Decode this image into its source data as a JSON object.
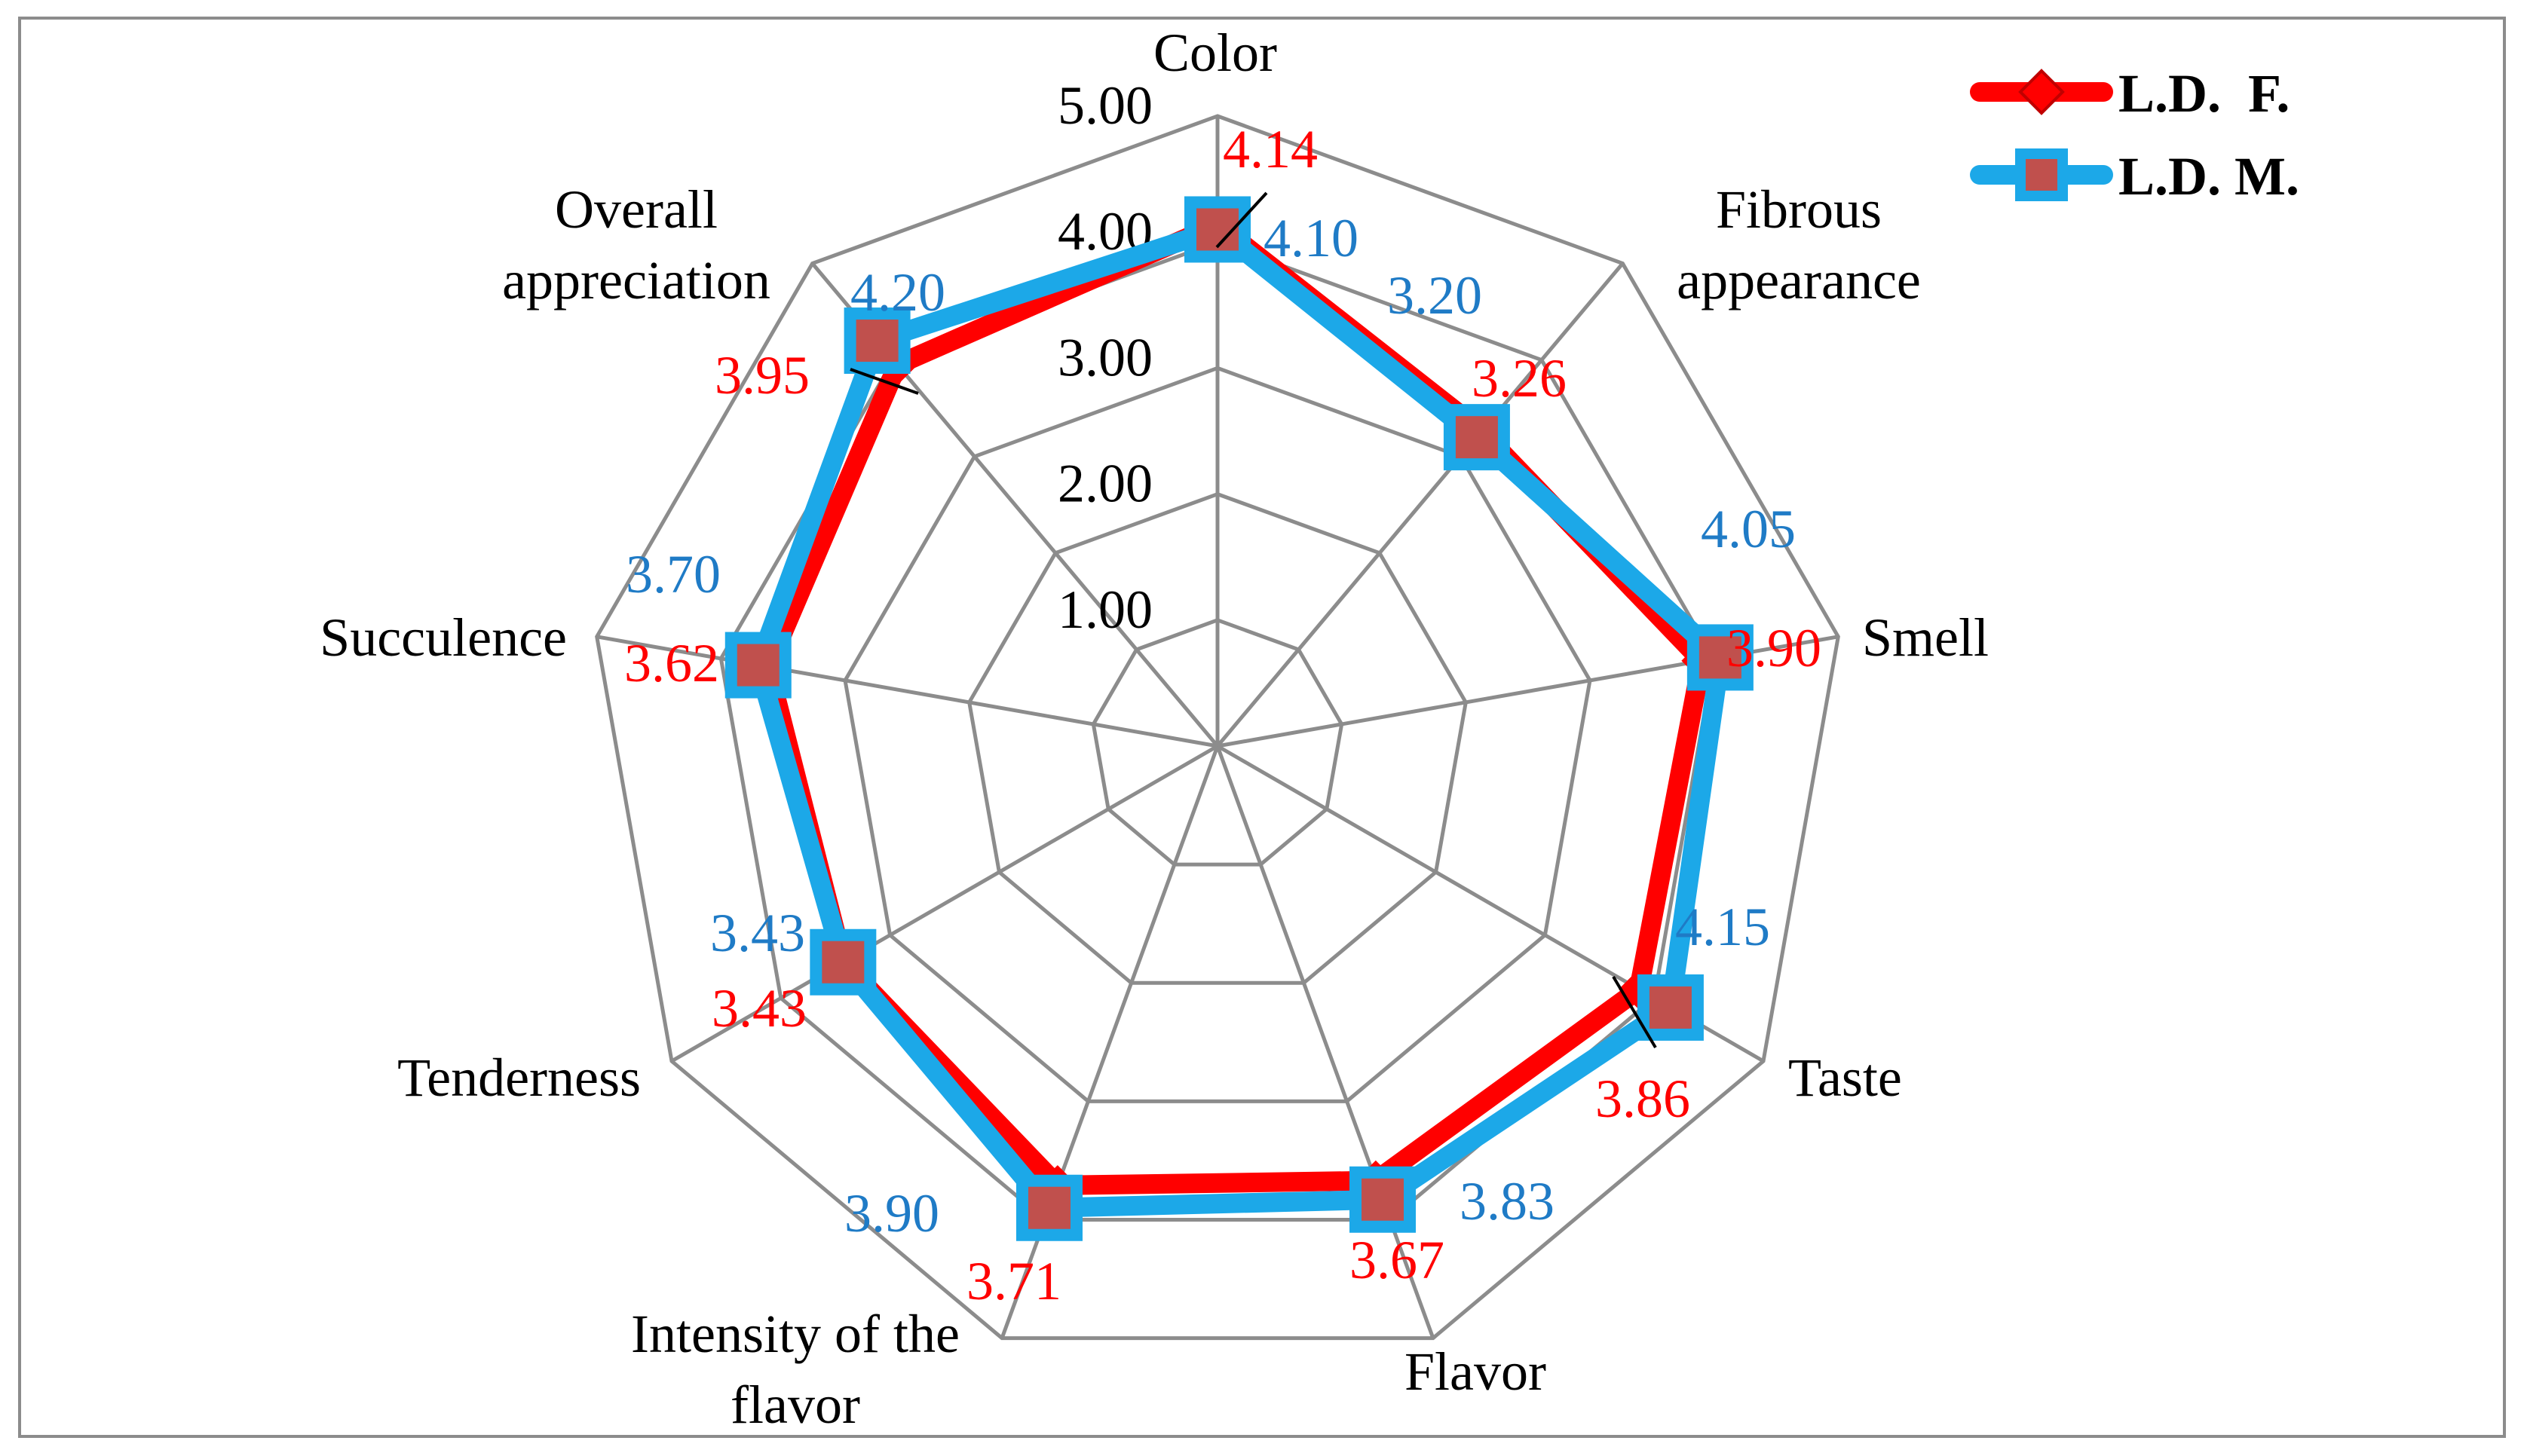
{
  "chart_data": {
    "type": "radar",
    "categories": [
      "Color",
      "Fibrous appearance",
      "Smell",
      "Taste",
      "Flavor",
      "Intensity of the flavor",
      "Tenderness",
      "Succulence",
      "Overall appreciation"
    ],
    "category_lines": [
      [
        "Color"
      ],
      [
        "Fibrous",
        "appearance"
      ],
      [
        "Smell"
      ],
      [
        "Taste"
      ],
      [
        "Flavor"
      ],
      [
        "Intensity of the",
        "flavor"
      ],
      [
        "Tenderness"
      ],
      [
        "Succulence"
      ],
      [
        "Overall",
        "appreciation"
      ]
    ],
    "rlim": [
      0,
      5
    ],
    "ticks": [
      1,
      2,
      3,
      4,
      5
    ],
    "tick_labels": [
      "1.00",
      "2.00",
      "3.00",
      "4.00",
      "5.00"
    ],
    "grid": true,
    "legend_position": "top-right",
    "series": [
      {
        "name": "L.D.  F.",
        "color": "#ff0000",
        "marker": "diamond",
        "values": [
          4.14,
          3.26,
          3.9,
          3.86,
          3.67,
          3.71,
          3.43,
          3.62,
          3.95
        ],
        "labels": [
          "4.14",
          "3.26",
          "3.90",
          "3.86",
          "3.67",
          "3.71",
          "3.43",
          "3.62",
          "3.95"
        ]
      },
      {
        "name": "L.D. M.",
        "color": "#1ca8e8",
        "marker": "square",
        "marker_fill": "#c0504d",
        "values": [
          4.1,
          3.2,
          4.05,
          4.15,
          3.83,
          3.9,
          3.43,
          3.7,
          4.2
        ],
        "labels": [
          "4.10",
          "3.20",
          "4.05",
          "4.15",
          "3.83",
          "3.90",
          "3.43",
          "3.70",
          "4.20"
        ]
      }
    ]
  }
}
